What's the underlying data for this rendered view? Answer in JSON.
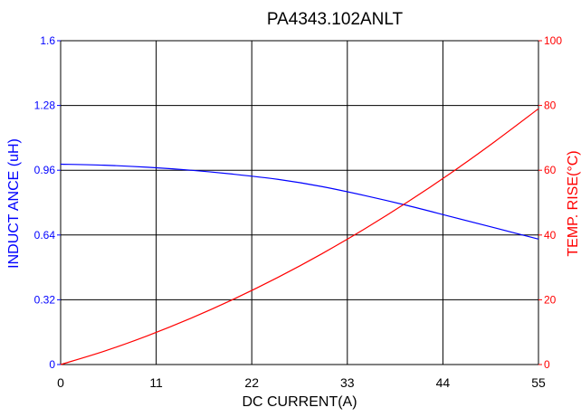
{
  "chart_data": {
    "type": "line",
    "title": "PA4343.102ANLT",
    "xlabel": "DC CURRENT(A)",
    "ylabel_left": "INDUCT ANCE (uH)",
    "ylabel_right": "TEMP. RISE(°C)",
    "xlim": [
      0,
      55
    ],
    "ylim_left": [
      0,
      1.6
    ],
    "ylim_right": [
      0,
      100
    ],
    "x_ticks": [
      "0",
      "11",
      "22",
      "33",
      "44",
      "55"
    ],
    "y_ticks_left": [
      "0",
      "0.32",
      "0.64",
      "0.96",
      "1.28",
      "1.6"
    ],
    "y_ticks_right": [
      "0",
      "20",
      "40",
      "60",
      "80",
      "100"
    ],
    "grid": true,
    "series": [
      {
        "axis": "left",
        "color": "#0000ff",
        "x": [
          0,
          5,
          10,
          15,
          20,
          25,
          30,
          35,
          40,
          45,
          50,
          55
        ],
        "y": [
          0.99,
          0.985,
          0.975,
          0.96,
          0.94,
          0.915,
          0.88,
          0.835,
          0.785,
          0.73,
          0.675,
          0.62
        ]
      },
      {
        "axis": "right",
        "color": "#ff0000",
        "x": [
          0,
          5,
          10,
          15,
          20,
          25,
          30,
          35,
          40,
          45,
          50,
          55
        ],
        "y": [
          0,
          4.1,
          8.9,
          14.3,
          20.3,
          26.9,
          34.1,
          41.9,
          50.3,
          59.3,
          68.9,
          79
        ]
      }
    ]
  }
}
